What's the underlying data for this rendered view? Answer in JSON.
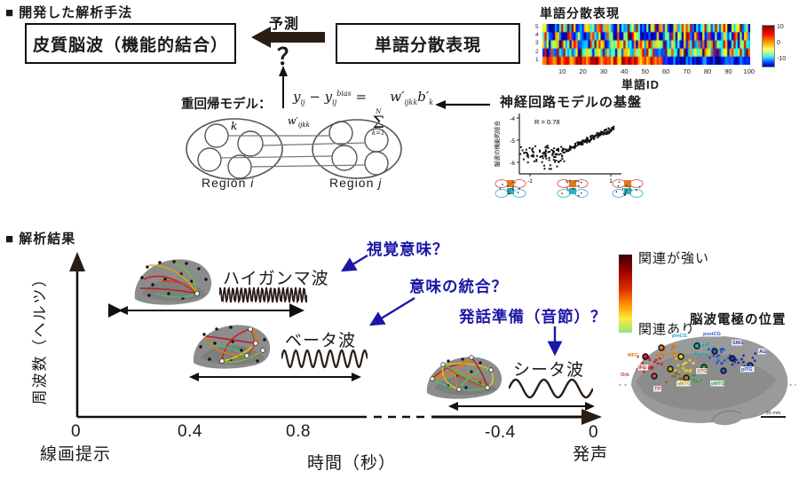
{
  "palette": {
    "ink": "#1a1a1a",
    "dark_arrow": "#2a1d15",
    "accent_blue": "#1b17a6",
    "brain_gray": "#8c8c8c"
  },
  "method": {
    "heading": "■ 開発した解析手法",
    "box_cortical": "皮質脳波（機能的結合）",
    "predict_label": "予測",
    "question_mark": "？",
    "box_embedding": "単語分散表現",
    "regression": {
      "label": "重回帰モデル：",
      "y1": "y",
      "y1_sub": "ij",
      "minus": "−",
      "y2": "y",
      "y2_sub": "ij",
      "y2_sup": "bias",
      "equals": "=",
      "sigma": "Σ",
      "sigma_top": "N",
      "sigma_bottom": "k=1",
      "w": "w′",
      "w_sub": "ijkk",
      "b": "b′",
      "b_sub": "k"
    },
    "network": {
      "k": "k",
      "weight": "w′",
      "weight_sub": "ijkk",
      "region": "Region",
      "i": "i",
      "j": "j"
    }
  },
  "embedding": {
    "title": "単語分散表現",
    "xlabel": "単語ID",
    "x_ticks": [
      10,
      20,
      30,
      40,
      50,
      60,
      70,
      80,
      90,
      100
    ],
    "y_ticks": [
      5,
      4,
      3,
      2,
      1
    ],
    "colorbar_ticks": [
      "10",
      "0",
      "-10"
    ]
  },
  "basis": {
    "title": "神経回路モデルの基盤",
    "annotation": "R = 0.78",
    "ylabel": "脳波の機能的結合",
    "y_ticks": [
      "-4",
      "-5",
      "-6"
    ],
    "x_ticks": [
      "-1",
      "1"
    ]
  },
  "results": {
    "heading": "■ 解析結果",
    "ylabel": "周波数（ヘルツ）",
    "xlabel": "時間（秒）",
    "x_ticks_left": [
      "0",
      "0.4",
      "0.8"
    ],
    "x_ticks_right": [
      "-0.4",
      "0"
    ],
    "origin_label": "線画提示",
    "end_label": "発声",
    "waves": [
      {
        "name": "ハイガンマ波"
      },
      {
        "name": "ベータ波"
      },
      {
        "name": "シータ波"
      }
    ],
    "annotations": [
      "視覚意味？",
      "意味の統合？",
      "発話準備（音節）？"
    ],
    "colorbar": {
      "top": "関連が強い",
      "bottom": "関連あり"
    },
    "electrode_title": "脳波電極の位置",
    "electrode_labels": [
      {
        "t": "MFG",
        "c": "#e07818"
      },
      {
        "t": "Orb",
        "c": "#cc3333"
      },
      {
        "t": "IFG",
        "c": "#cc2020"
      },
      {
        "t": "preCG",
        "c": "#18a8b8"
      },
      {
        "t": "postCG",
        "c": "#2a52cc"
      },
      {
        "t": "SMG",
        "c": "#3040c0"
      },
      {
        "t": "AG",
        "c": "#2233aa"
      },
      {
        "t": "pITG",
        "c": "#3050d0"
      },
      {
        "t": "aMTG",
        "c": "#c0a020"
      },
      {
        "t": "pMTG",
        "c": "#30a050"
      },
      {
        "t": "STG",
        "c": "#c07030"
      },
      {
        "t": "TP",
        "c": "#cc4444"
      }
    ],
    "scale_label": "30 mm"
  },
  "chart_data": [
    {
      "type": "heatmap",
      "title": "単語分散表現",
      "xlabel": "単語ID",
      "ylabel": "",
      "x_ticks": [
        10,
        20,
        30,
        40,
        50,
        60,
        70,
        80,
        90,
        100
      ],
      "y_categories": [
        5,
        4,
        3,
        2,
        1
      ],
      "value_range": [
        -10,
        10
      ],
      "colorbar_ticks": [
        10,
        0,
        -10
      ],
      "description": "5-dimensional word embedding values for 100 word IDs, pseudo-random jet colormap; bottom row warm (positive) for IDs 1-58, cold (negative) after"
    },
    {
      "type": "scatter",
      "title": "神経回路モデルの基盤",
      "annotation": "R = 0.78",
      "ylabel": "脳波の機能的結合",
      "x_ticks": [
        -1,
        1
      ],
      "y_ticks": [
        -4,
        -5,
        -6
      ],
      "xlim": [
        -1.4,
        1.3
      ],
      "ylim": [
        -6.5,
        -4
      ],
      "trend": "flat scattered cloud near y=-5.7 for x<0 rising linearly to y=-4.5 at x=1.1, n≈230 points"
    }
  ]
}
